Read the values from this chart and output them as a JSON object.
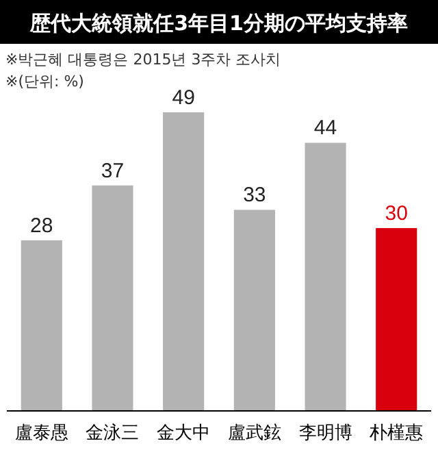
{
  "chart_data": {
    "type": "bar",
    "title": "歴代大統領就任3年目1分期の平均支持率",
    "annotations": [
      "※박근혜 대통령은 2015년 3주차 조사치",
      "※(단위: %)"
    ],
    "categories": [
      "盧泰愚",
      "金泳三",
      "金大中",
      "盧武鉉",
      "李明博",
      "朴槿惠"
    ],
    "values": [
      28,
      37,
      49,
      33,
      44,
      30
    ],
    "colors": [
      "#b3b3b3",
      "#b3b3b3",
      "#b3b3b3",
      "#b3b3b3",
      "#b3b3b3",
      "#d9000d"
    ],
    "data_labels": true
  }
}
